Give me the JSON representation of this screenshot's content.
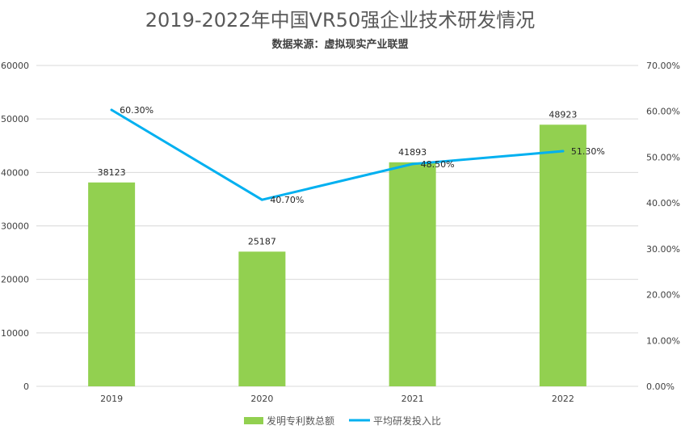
{
  "chart_data": {
    "type": "bar+line",
    "title": "2019-2022年中国VR50强企业技术研发情况",
    "subtitle": "数据来源：虚拟现实产业联盟",
    "categories": [
      "2019",
      "2020",
      "2021",
      "2022"
    ],
    "series": [
      {
        "name": "发明专利数总额",
        "type": "bar",
        "axis": "left",
        "color": "#92d050",
        "values": [
          38123,
          25187,
          41893,
          48923
        ],
        "labels": [
          "38123",
          "25187",
          "41893",
          "48923"
        ]
      },
      {
        "name": "平均研发投入比",
        "type": "line",
        "axis": "right",
        "color": "#00b0f0",
        "values": [
          60.3,
          40.7,
          48.5,
          51.3
        ],
        "labels": [
          "60.30%",
          "40.70%",
          "48.50%",
          "51.30%"
        ]
      }
    ],
    "y_left": {
      "min": 0,
      "max": 60000,
      "ticks": [
        "0",
        "10000",
        "20000",
        "30000",
        "40000",
        "50000",
        "60000"
      ]
    },
    "y_right": {
      "min": 0,
      "max": 70,
      "ticks": [
        "0.00%",
        "10.00%",
        "20.00%",
        "30.00%",
        "40.00%",
        "50.00%",
        "60.00%",
        "70.00%"
      ]
    },
    "grid": true,
    "legend_position": "bottom"
  }
}
